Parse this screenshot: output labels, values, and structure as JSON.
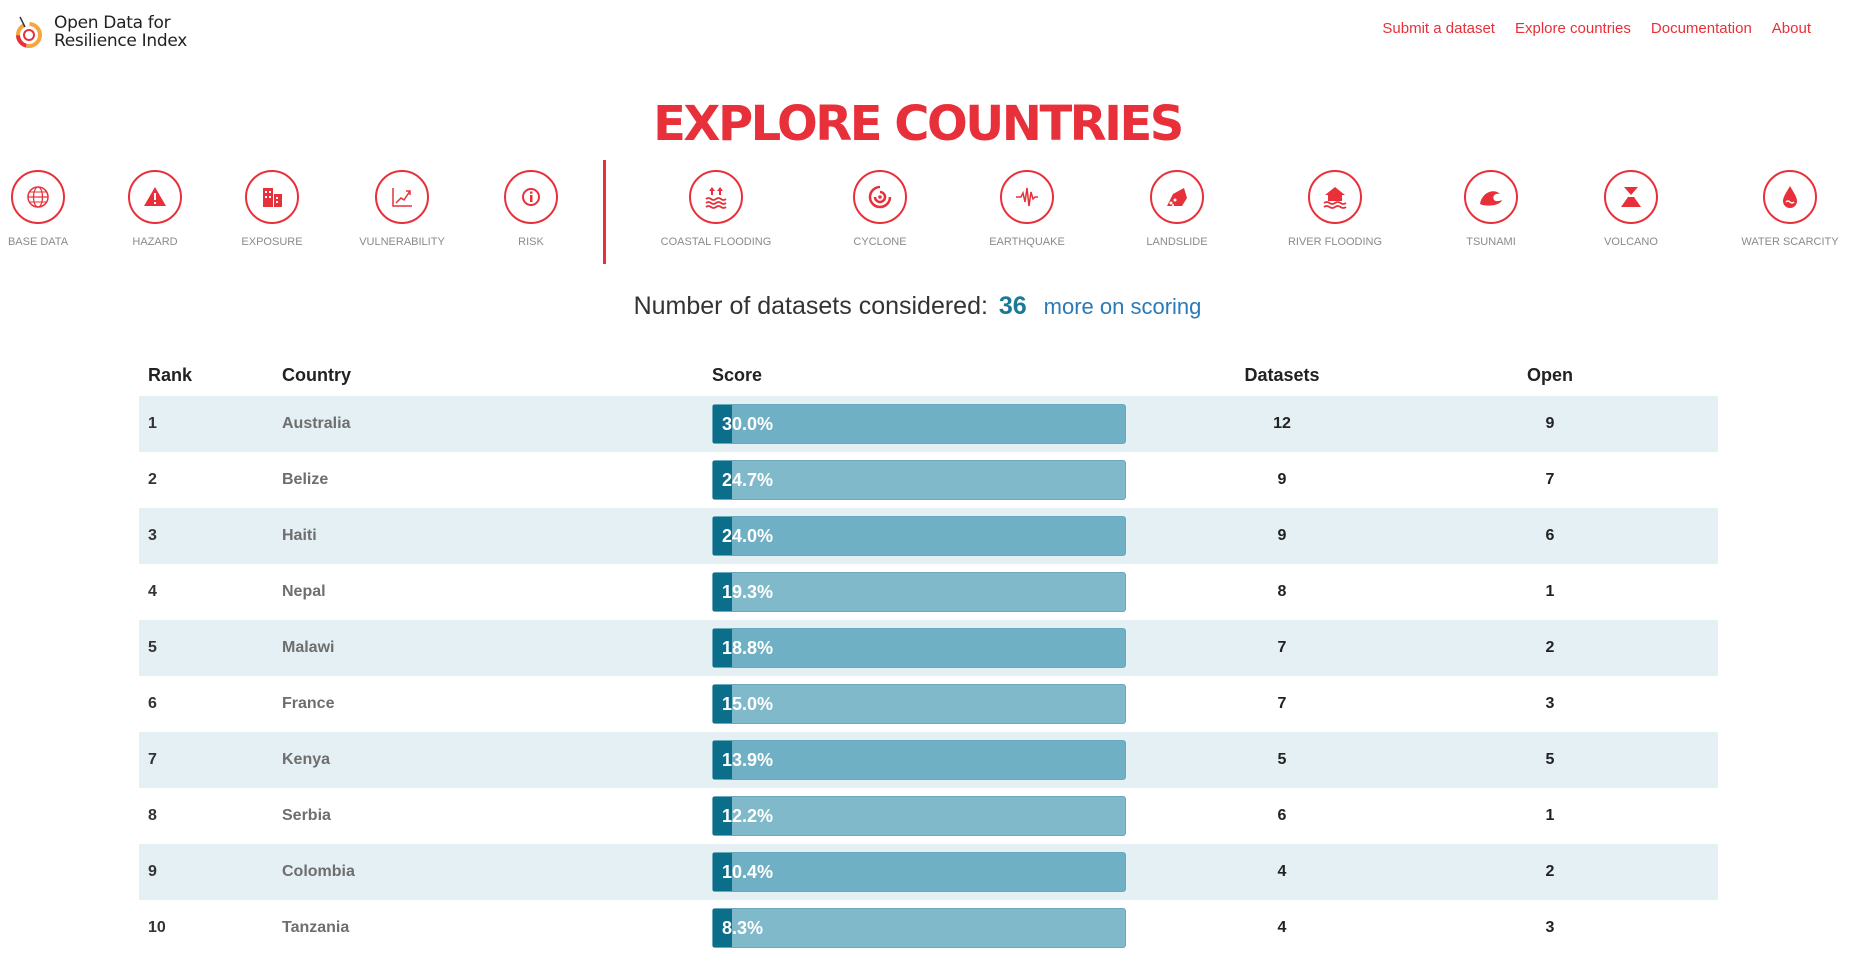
{
  "brand": {
    "line1": "Open Data for",
    "line2": "Resilience Index"
  },
  "nav": [
    {
      "label": "Submit a dataset"
    },
    {
      "label": "Explore countries"
    },
    {
      "label": "Documentation"
    },
    {
      "label": "About"
    }
  ],
  "page_title": "EXPLORE COUNTRIES",
  "categories": [
    {
      "label": "BASE DATA",
      "icon": "globe-icon"
    },
    {
      "label": "HAZARD",
      "icon": "warning-icon"
    },
    {
      "label": "EXPOSURE",
      "icon": "building-icon"
    },
    {
      "label": "VULNERABILITY",
      "icon": "trend-chart-icon"
    },
    {
      "label": "RISK",
      "icon": "info-icon"
    }
  ],
  "hazards": [
    {
      "label": "COASTAL FLOODING",
      "icon": "coastal-flooding-icon"
    },
    {
      "label": "CYCLONE",
      "icon": "cyclone-icon"
    },
    {
      "label": "EARTHQUAKE",
      "icon": "earthquake-icon"
    },
    {
      "label": "LANDSLIDE",
      "icon": "landslide-icon"
    },
    {
      "label": "RIVER FLOODING",
      "icon": "river-flooding-icon"
    },
    {
      "label": "TSUNAMI",
      "icon": "tsunami-icon"
    },
    {
      "label": "VOLCANO",
      "icon": "volcano-icon"
    },
    {
      "label": "WATER SCARCITY",
      "icon": "water-drop-icon"
    }
  ],
  "datasets_info": {
    "label": "Number of datasets considered:",
    "count": "36",
    "link": "more on scoring"
  },
  "table": {
    "headers": {
      "rank": "Rank",
      "country": "Country",
      "score": "Score",
      "datasets": "Datasets",
      "open": "Open"
    },
    "rows": [
      {
        "rank": "1",
        "country": "Australia",
        "score": "30.0%",
        "datasets": "12",
        "open": "9"
      },
      {
        "rank": "2",
        "country": "Belize",
        "score": "24.7%",
        "datasets": "9",
        "open": "7"
      },
      {
        "rank": "3",
        "country": "Haiti",
        "score": "24.0%",
        "datasets": "9",
        "open": "6"
      },
      {
        "rank": "4",
        "country": "Nepal",
        "score": "19.3%",
        "datasets": "8",
        "open": "1"
      },
      {
        "rank": "5",
        "country": "Malawi",
        "score": "18.8%",
        "datasets": "7",
        "open": "2"
      },
      {
        "rank": "6",
        "country": "France",
        "score": "15.0%",
        "datasets": "7",
        "open": "3"
      },
      {
        "rank": "7",
        "country": "Kenya",
        "score": "13.9%",
        "datasets": "5",
        "open": "5"
      },
      {
        "rank": "8",
        "country": "Serbia",
        "score": "12.2%",
        "datasets": "6",
        "open": "1"
      },
      {
        "rank": "9",
        "country": "Colombia",
        "score": "10.4%",
        "datasets": "4",
        "open": "2"
      },
      {
        "rank": "10",
        "country": "Tanzania",
        "score": "8.3%",
        "datasets": "4",
        "open": "3"
      }
    ]
  },
  "colors": {
    "brand_red": "#e8303a",
    "bar": "#80b9ca",
    "bar_dark": "#0b6f8c",
    "count": "#1a7a96",
    "link": "#2a7ab8"
  }
}
